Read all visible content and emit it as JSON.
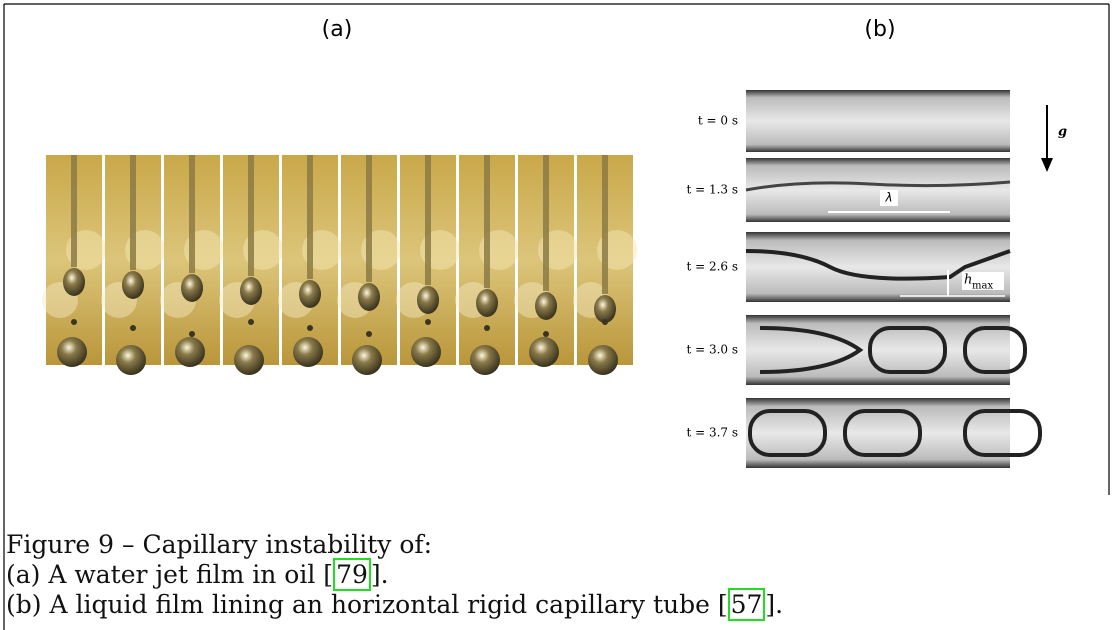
{
  "panels": [
    {
      "label": "(a)"
    },
    {
      "label": "(b)",
      "time_labels": [
        "t = 0 s",
        "t = 1.3 s",
        "t = 2.6 s",
        "t = 3.0 s",
        "t = 3.7 s"
      ],
      "wavelength": "λ",
      "height": "h",
      "height_sub": "max",
      "gravity": "g"
    }
  ],
  "caption": {
    "title": "Figure 9 – Capillary instability of:",
    "items": [
      {
        "text": "(a) A water jet film in oil [",
        "ref": "79",
        "end": "]."
      },
      {
        "text": "(b) A liquid film lining an horizontal rigid capillary tube [",
        "ref": "57",
        "end": "]."
      }
    ]
  }
}
